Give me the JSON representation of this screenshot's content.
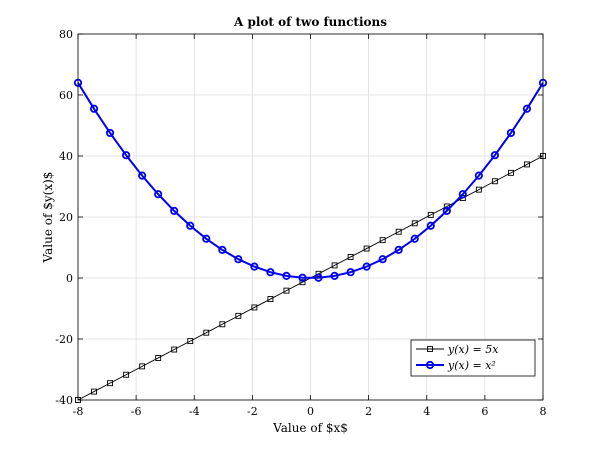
{
  "chart_data": {
    "type": "line",
    "title": "A plot of two functions",
    "xlabel": "Value of $x$",
    "ylabel": "Value of $y(x)$",
    "xlim": [
      -8,
      8
    ],
    "ylim": [
      -40,
      80
    ],
    "xticks": [
      -8,
      -6,
      -4,
      -2,
      0,
      2,
      4,
      6,
      8
    ],
    "yticks": [
      -40,
      -20,
      0,
      20,
      40,
      60,
      80
    ],
    "grid": true,
    "legend_position": "bottom-right",
    "x": [
      -8,
      -7.448,
      -6.897,
      -6.345,
      -5.793,
      -5.241,
      -4.69,
      -4.138,
      -3.586,
      -3.034,
      -2.483,
      -1.931,
      -1.379,
      -0.828,
      -0.276,
      0.276,
      0.828,
      1.379,
      1.931,
      2.483,
      3.034,
      3.586,
      4.138,
      4.69,
      5.241,
      5.793,
      6.345,
      6.897,
      7.448,
      8
    ],
    "series": [
      {
        "name": "y(x) = 5x",
        "color": "#000000",
        "marker": "square",
        "y": [
          -40,
          -37.24,
          -34.48,
          -31.72,
          -28.97,
          -26.21,
          -23.45,
          -20.69,
          -17.93,
          -15.17,
          -12.41,
          -9.66,
          -6.9,
          -4.14,
          -1.38,
          1.38,
          4.14,
          6.9,
          9.66,
          12.41,
          15.17,
          17.93,
          20.69,
          23.45,
          26.21,
          28.97,
          31.72,
          34.48,
          37.24,
          40
        ]
      },
      {
        "name": "y(x) = x²",
        "color": "#0000ee",
        "marker": "circle",
        "y": [
          64,
          55.48,
          47.56,
          40.26,
          33.56,
          27.47,
          22.0,
          17.12,
          12.86,
          9.21,
          6.16,
          3.73,
          1.9,
          0.69,
          0.08,
          0.08,
          0.69,
          1.9,
          3.73,
          6.16,
          9.21,
          12.86,
          17.12,
          22.0,
          27.47,
          33.56,
          40.26,
          47.56,
          55.48,
          64
        ]
      }
    ]
  }
}
